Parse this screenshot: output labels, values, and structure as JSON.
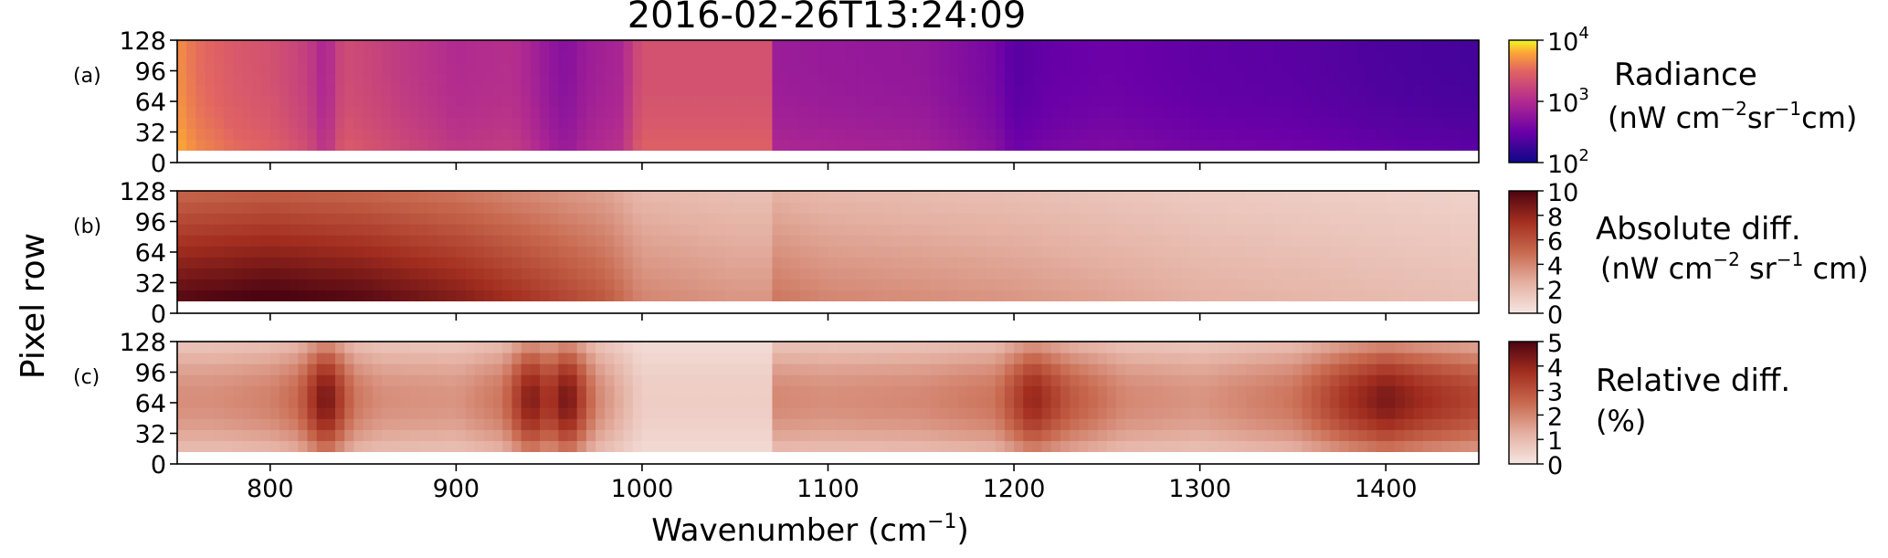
{
  "title": "2016-02-26T13:24:09",
  "shared_ylabel": "Pixel row",
  "shared_xlabel": "Wavenumber  (cm",
  "shared_xlabel_sup": "−1",
  "shared_xlabel_tail": ")",
  "chart_data": [
    {
      "type": "heatmap",
      "panel_label": "(a)",
      "title": "2016-02-26T13:24:09",
      "xlabel": "Wavenumber (cm⁻¹)",
      "ylabel": "Pixel row",
      "xlim": [
        750,
        1450
      ],
      "ylim": [
        0,
        128
      ],
      "x_ticks": [
        800,
        900,
        1000,
        1100,
        1200,
        1300,
        1400
      ],
      "x_tick_labels_visible": false,
      "y_ticks": [
        0,
        32,
        64,
        96,
        128
      ],
      "valid_rows": [
        13,
        128
      ],
      "colormap": "plasma",
      "color_scale": "log",
      "clim": [
        100,
        10000
      ],
      "colorbar_ticks": [
        {
          "base": "10",
          "exp": "2",
          "value": 100
        },
        {
          "base": "10",
          "exp": "3",
          "value": 1000
        },
        {
          "base": "10",
          "exp": "4",
          "value": 10000
        }
      ],
      "colorbar_label_line1": "Radiance",
      "colorbar_label_line2_parts": [
        "(nW cm",
        "−2",
        "sr",
        "−1",
        "cm)"
      ],
      "profile": {
        "x": [
          750,
          760,
          780,
          800,
          820,
          830,
          840,
          850,
          870,
          900,
          930,
          950,
          960,
          970,
          990,
          1000,
          1020,
          1050,
          1068,
          1070,
          1100,
          1150,
          1190,
          1200,
          1220,
          1250,
          1300,
          1350,
          1400,
          1450
        ],
        "radiance": [
          5000,
          3500,
          2600,
          2200,
          1500,
          800,
          2000,
          1800,
          1400,
          1000,
          1100,
          600,
          500,
          700,
          900,
          2200,
          2200,
          2200,
          2200,
          700,
          650,
          600,
          380,
          250,
          300,
          330,
          280,
          260,
          220,
          200
        ]
      }
    },
    {
      "type": "heatmap",
      "panel_label": "(b)",
      "xlim": [
        750,
        1450
      ],
      "ylim": [
        0,
        128
      ],
      "x_ticks": [
        800,
        900,
        1000,
        1100,
        1200,
        1300,
        1400
      ],
      "x_tick_labels_visible": false,
      "y_ticks": [
        0,
        32,
        64,
        96,
        128
      ],
      "valid_rows": [
        13,
        128
      ],
      "colormap": "reds",
      "color_scale": "linear",
      "clim": [
        0,
        10
      ],
      "colorbar_ticks": [
        {
          "label": "0",
          "value": 0
        },
        {
          "label": "2",
          "value": 2
        },
        {
          "label": "4",
          "value": 4
        },
        {
          "label": "6",
          "value": 6
        },
        {
          "label": "8",
          "value": 8
        },
        {
          "label": "10",
          "value": 10
        }
      ],
      "colorbar_label_line1": "Absolute diff.",
      "colorbar_label_line2_parts": [
        "(nW cm",
        "−2",
        " sr",
        "−1",
        " cm)"
      ],
      "profile": {
        "x": [
          750,
          800,
          850,
          900,
          950,
          980,
          1000,
          1050,
          1068,
          1070,
          1100,
          1200,
          1300,
          1400,
          1450
        ],
        "abs_diff": [
          8.5,
          9.0,
          8.5,
          7.5,
          6.0,
          5.0,
          3.5,
          3.0,
          3.0,
          4.0,
          3.5,
          3.0,
          2.2,
          1.8,
          1.6
        ]
      }
    },
    {
      "type": "heatmap",
      "panel_label": "(c)",
      "xlim": [
        750,
        1450
      ],
      "ylim": [
        0,
        128
      ],
      "x_ticks": [
        800,
        900,
        1000,
        1100,
        1200,
        1300,
        1400
      ],
      "x_tick_labels": [
        "800",
        "900",
        "1000",
        "1100",
        "1200",
        "1300",
        "1400"
      ],
      "y_ticks": [
        0,
        32,
        64,
        96,
        128
      ],
      "valid_rows": [
        13,
        128
      ],
      "colormap": "reds",
      "color_scale": "linear",
      "clim": [
        0,
        5
      ],
      "colorbar_ticks": [
        {
          "label": "0",
          "value": 0
        },
        {
          "label": "1",
          "value": 1
        },
        {
          "label": "2",
          "value": 2
        },
        {
          "label": "3",
          "value": 3
        },
        {
          "label": "4",
          "value": 4
        },
        {
          "label": "5",
          "value": 5
        }
      ],
      "colorbar_label_line1": "Relative diff.",
      "colorbar_label_line2": "(%)",
      "profile": {
        "x": [
          750,
          770,
          800,
          815,
          830,
          845,
          860,
          900,
          925,
          940,
          950,
          960,
          975,
          1000,
          1068,
          1070,
          1100,
          1150,
          1190,
          1210,
          1230,
          1260,
          1300,
          1350,
          1380,
          1400,
          1420,
          1450
        ],
        "rel_diff": [
          1.6,
          1.6,
          1.8,
          2.2,
          4.0,
          2.0,
          1.6,
          1.5,
          2.0,
          3.8,
          3.0,
          4.0,
          1.8,
          0.5,
          0.5,
          1.7,
          1.6,
          1.7,
          2.0,
          3.5,
          2.5,
          1.7,
          1.5,
          2.0,
          3.2,
          3.8,
          3.3,
          2.8
        ]
      }
    }
  ]
}
